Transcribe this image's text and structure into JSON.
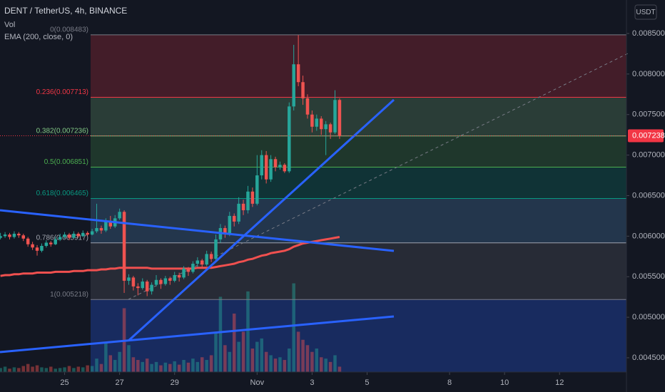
{
  "chart_data": {
    "type": "candlestick",
    "title": "DENT / TetherUS, 4h, BINANCE",
    "currency": "USDT",
    "up_color": "#26a69a",
    "down_color": "#ef5350",
    "ohlc": [
      [
        0.00598,
        0.00604,
        0.00596,
        0.006
      ],
      [
        0.006,
        0.00605,
        0.00598,
        0.00602
      ],
      [
        0.00602,
        0.00604,
        0.00596,
        0.00599
      ],
      [
        0.00599,
        0.00606,
        0.00597,
        0.00603
      ],
      [
        0.00603,
        0.00605,
        0.00598,
        0.00601
      ],
      [
        0.00601,
        0.00603,
        0.00594,
        0.00597
      ],
      [
        0.00597,
        0.00599,
        0.00587,
        0.0059
      ],
      [
        0.0059,
        0.00593,
        0.00583,
        0.00586
      ],
      [
        0.00586,
        0.00589,
        0.00576,
        0.00582
      ],
      [
        0.00582,
        0.00591,
        0.0058,
        0.00588
      ],
      [
        0.00588,
        0.00595,
        0.00586,
        0.00592
      ],
      [
        0.00592,
        0.00594,
        0.00587,
        0.0059
      ],
      [
        0.0059,
        0.00599,
        0.00589,
        0.00596
      ],
      [
        0.00596,
        0.00603,
        0.00594,
        0.00599
      ],
      [
        0.00599,
        0.00605,
        0.00597,
        0.00602
      ],
      [
        0.00602,
        0.00604,
        0.00595,
        0.00598
      ],
      [
        0.00598,
        0.00606,
        0.00597,
        0.00603
      ],
      [
        0.00603,
        0.00605,
        0.00598,
        0.006
      ],
      [
        0.006,
        0.00607,
        0.00599,
        0.00604
      ],
      [
        0.00604,
        0.00606,
        0.006,
        0.00602
      ],
      [
        0.00602,
        0.00609,
        0.00601,
        0.00606
      ],
      [
        0.00606,
        0.0064,
        0.00604,
        0.0061
      ],
      [
        0.0061,
        0.00613,
        0.00603,
        0.00607
      ],
      [
        0.00607,
        0.00622,
        0.00605,
        0.00618
      ],
      [
        0.00618,
        0.00625,
        0.00609,
        0.00612
      ],
      [
        0.00612,
        0.00626,
        0.0061,
        0.00622
      ],
      [
        0.00622,
        0.00634,
        0.0062,
        0.0063
      ],
      [
        0.0063,
        0.00632,
        0.0053,
        0.00545
      ],
      [
        0.00545,
        0.00553,
        0.0054,
        0.00549
      ],
      [
        0.00549,
        0.00551,
        0.00533,
        0.00538
      ],
      [
        0.00538,
        0.00542,
        0.00527,
        0.00536
      ],
      [
        0.00536,
        0.00548,
        0.00534,
        0.00544
      ],
      [
        0.00544,
        0.00546,
        0.00526,
        0.00532
      ],
      [
        0.00532,
        0.00543,
        0.00528,
        0.0054
      ],
      [
        0.0054,
        0.00552,
        0.00538,
        0.00546
      ],
      [
        0.00546,
        0.00548,
        0.00535,
        0.00541
      ],
      [
        0.00541,
        0.00551,
        0.00539,
        0.00548
      ],
      [
        0.00548,
        0.0055,
        0.0054,
        0.00545
      ],
      [
        0.00545,
        0.00556,
        0.00543,
        0.00552
      ],
      [
        0.00552,
        0.00555,
        0.00544,
        0.00549
      ],
      [
        0.00549,
        0.00563,
        0.00547,
        0.0056
      ],
      [
        0.0056,
        0.00562,
        0.00551,
        0.00556
      ],
      [
        0.00556,
        0.00569,
        0.00554,
        0.00566
      ],
      [
        0.00566,
        0.00574,
        0.00562,
        0.0057
      ],
      [
        0.0057,
        0.00572,
        0.00561,
        0.00565
      ],
      [
        0.00565,
        0.00582,
        0.00563,
        0.00578
      ],
      [
        0.00578,
        0.00581,
        0.00568,
        0.00572
      ],
      [
        0.00572,
        0.00602,
        0.0057,
        0.00596
      ],
      [
        0.00596,
        0.00615,
        0.00592,
        0.0061
      ],
      [
        0.0061,
        0.00613,
        0.00598,
        0.00603
      ],
      [
        0.00603,
        0.0063,
        0.006,
        0.00625
      ],
      [
        0.00625,
        0.00628,
        0.00612,
        0.00618
      ],
      [
        0.00618,
        0.00648,
        0.00615,
        0.0064
      ],
      [
        0.0064,
        0.00645,
        0.00626,
        0.00632
      ],
      [
        0.00632,
        0.00662,
        0.00628,
        0.00655
      ],
      [
        0.00655,
        0.0066,
        0.00636,
        0.0064
      ],
      [
        0.0064,
        0.007,
        0.00638,
        0.00675
      ],
      [
        0.00675,
        0.00706,
        0.0067,
        0.007
      ],
      [
        0.007,
        0.00705,
        0.00665,
        0.0067
      ],
      [
        0.0067,
        0.007,
        0.00667,
        0.00695
      ],
      [
        0.00695,
        0.00698,
        0.0068,
        0.00685
      ],
      [
        0.00685,
        0.00692,
        0.00682,
        0.00688
      ],
      [
        0.00688,
        0.0069,
        0.00678,
        0.0068
      ],
      [
        0.0068,
        0.00765,
        0.00678,
        0.0076
      ],
      [
        0.0076,
        0.00836,
        0.00755,
        0.00812
      ],
      [
        0.00812,
        0.00848,
        0.00785,
        0.0079
      ],
      [
        0.0079,
        0.00798,
        0.00762,
        0.0077
      ],
      [
        0.0077,
        0.00775,
        0.00745,
        0.0075
      ],
      [
        0.0075,
        0.00755,
        0.00728,
        0.00735
      ],
      [
        0.00735,
        0.0075,
        0.0073,
        0.00745
      ],
      [
        0.00745,
        0.00748,
        0.00725,
        0.00732
      ],
      [
        0.00732,
        0.00742,
        0.007,
        0.00738
      ],
      [
        0.00738,
        0.0074,
        0.0072,
        0.00728
      ],
      [
        0.00728,
        0.0078,
        0.00726,
        0.00768
      ],
      [
        0.00768,
        0.0077,
        0.0072,
        0.007238
      ]
    ],
    "volume": {
      "name": "Vol",
      "ylim": [
        0,
        140
      ],
      "values": [
        6,
        8,
        5,
        7,
        6,
        9,
        12,
        8,
        10,
        7,
        6,
        8,
        5,
        6,
        7,
        9,
        6,
        8,
        7,
        10,
        9,
        20,
        12,
        44,
        25,
        18,
        30,
        95,
        40,
        22,
        18,
        15,
        20,
        12,
        15,
        10,
        14,
        12,
        16,
        11,
        18,
        14,
        20,
        15,
        22,
        18,
        25,
        60,
        112,
        40,
        30,
        87,
        45,
        60,
        120,
        35,
        45,
        50,
        30,
        25,
        20,
        22,
        18,
        35,
        132,
        60,
        48,
        40,
        30,
        35,
        22,
        20,
        15,
        25,
        8
      ]
    },
    "ema": {
      "name": "EMA (200, close, 0)",
      "color": "#f0504f",
      "values": [
        0.00551,
        0.00552,
        0.00552,
        0.00553,
        0.00553,
        0.00554,
        0.00554,
        0.00554,
        0.00555,
        0.00555,
        0.00555,
        0.00555,
        0.00556,
        0.00556,
        0.00556,
        0.00556,
        0.00557,
        0.00557,
        0.00557,
        0.00558,
        0.00558,
        0.00558,
        0.00559,
        0.00559,
        0.0056,
        0.0056,
        0.00561,
        0.00561,
        0.00561,
        0.00561,
        0.00561,
        0.00561,
        0.00561,
        0.0056,
        0.0056,
        0.0056,
        0.0056,
        0.0056,
        0.0056,
        0.0056,
        0.0056,
        0.0056,
        0.0056,
        0.00561,
        0.00561,
        0.00561,
        0.00561,
        0.00562,
        0.00563,
        0.00564,
        0.00565,
        0.00566,
        0.00568,
        0.00569,
        0.00571,
        0.00572,
        0.00574,
        0.00576,
        0.00577,
        0.00579,
        0.0058,
        0.00581,
        0.00582,
        0.00584,
        0.00587,
        0.00589,
        0.00591,
        0.00592,
        0.00593,
        0.00594,
        0.00595,
        0.00596,
        0.00597,
        0.00598,
        0.00599
      ]
    },
    "fib_levels": [
      {
        "label": "0(0.008483)",
        "value": 0.008483,
        "color": "#787b86",
        "fill": "rgba(242,54,69,0.22)"
      },
      {
        "label": "0.236(0.007713)",
        "value": 0.007713,
        "color": "#f23645",
        "fill": "rgba(129,199,132,0.22)"
      },
      {
        "label": "0.382(0.007236)",
        "value": 0.007236,
        "color": "#81c784",
        "fill": "rgba(76,175,80,0.22)"
      },
      {
        "label": "0.5(0.006851)",
        "value": 0.006851,
        "color": "#4caf50",
        "fill": "rgba(8,153,129,0.22)"
      },
      {
        "label": "0.618(0.006465)",
        "value": 0.006465,
        "color": "#089981",
        "fill": "rgba(100,181,246,0.2)"
      },
      {
        "label": "0.786(0.005917)",
        "value": 0.005917,
        "color": "#a0a4ae",
        "fill": "rgba(120,123,134,0.2)"
      },
      {
        "label": "1(0.005218)",
        "value": 0.005218,
        "color": "#787b86",
        "fill": "rgba(41,98,255,0.28)"
      }
    ],
    "last_price": {
      "value": 0.007238,
      "label": "0.007238",
      "color": "#f23645"
    },
    "xlim": [
      -0.1,
      136.6
    ],
    "xticks": [
      {
        "value": 14,
        "label": "25"
      },
      {
        "value": 26,
        "label": "27"
      },
      {
        "value": 38,
        "label": "29"
      },
      {
        "value": 56,
        "label": "Nov"
      },
      {
        "value": 68,
        "label": "3"
      },
      {
        "value": 80,
        "label": "5"
      },
      {
        "value": 98,
        "label": "8"
      },
      {
        "value": 110,
        "label": "10"
      },
      {
        "value": 122,
        "label": "12"
      }
    ],
    "ylim": [
      0.004324,
      0.008913
    ],
    "yticks": [
      {
        "value": 0.0085,
        "label": "0.008500"
      },
      {
        "value": 0.008,
        "label": "0.008000"
      },
      {
        "value": 0.0075,
        "label": "0.007500"
      },
      {
        "value": 0.007,
        "label": "0.007000"
      },
      {
        "value": 0.0065,
        "label": "0.006500"
      },
      {
        "value": 0.006,
        "label": "0.006000"
      },
      {
        "value": 0.0055,
        "label": "0.005500"
      },
      {
        "value": 0.005,
        "label": "0.005000"
      },
      {
        "value": 0.0045,
        "label": "0.004500"
      }
    ]
  }
}
